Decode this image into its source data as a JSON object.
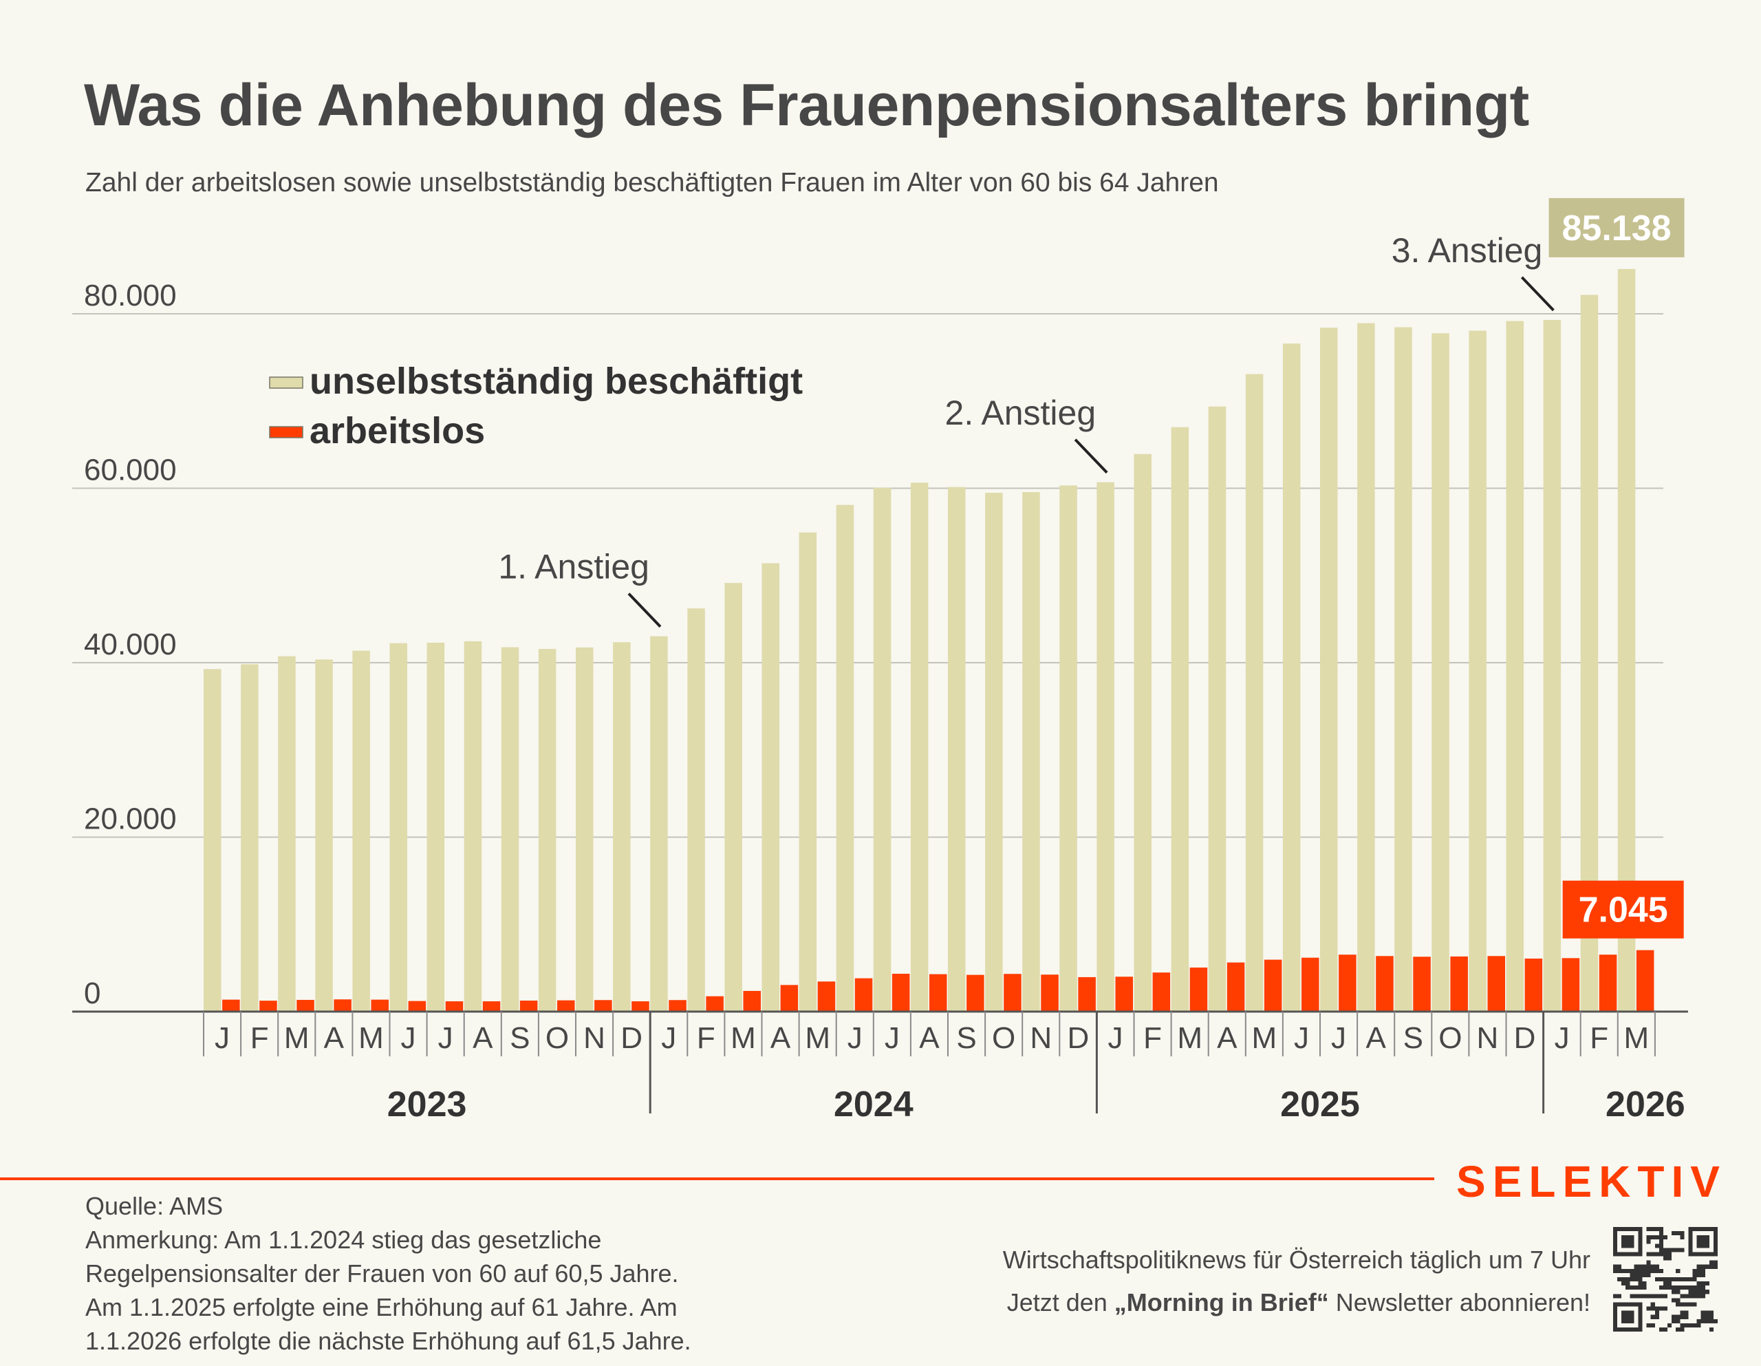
{
  "header": {
    "title": "Was die Anhebung des Frauenpensionsalters bringt",
    "subtitle": "Zahl der arbeitslosen sowie unselbstständig beschäftigten Frauen im Alter von 60 bis 64 Jahren"
  },
  "colors": {
    "employed": "#dfdbab",
    "unemployed": "#ff3d00",
    "employed_label_bg": "#c5c090",
    "brand": "#ff3d00",
    "background": "#f8f7f0",
    "text": "#474747"
  },
  "chart_data": {
    "type": "bar",
    "title": "Was die Anhebung des Frauenpensionsalters bringt",
    "subtitle": "Zahl der arbeitslosen sowie unselbstständig beschäftigten Frauen im Alter von 60 bis 64 Jahren",
    "xlabel": "",
    "ylabel": "",
    "ylim": [
      0,
      80000
    ],
    "yticks": [
      0,
      20000,
      40000,
      60000,
      80000
    ],
    "ytick_labels": [
      "0",
      "20.000",
      "40.000",
      "60.000",
      "80.000"
    ],
    "grid": true,
    "legend_position": "top-left",
    "categories": [
      "J",
      "F",
      "M",
      "A",
      "M",
      "J",
      "J",
      "A",
      "S",
      "O",
      "N",
      "D",
      "J",
      "F",
      "M",
      "A",
      "M",
      "J",
      "J",
      "A",
      "S",
      "O",
      "N",
      "D",
      "J",
      "F",
      "M",
      "A",
      "M",
      "J",
      "J",
      "A",
      "S",
      "O",
      "N",
      "D",
      "J",
      "F",
      "M"
    ],
    "years": [
      {
        "label": "2023",
        "months": 12
      },
      {
        "label": "2024",
        "months": 12
      },
      {
        "label": "2025",
        "months": 12
      },
      {
        "label": "2026",
        "months": 3
      }
    ],
    "series": [
      {
        "name": "unselbstständig beschäftigt",
        "color": "#dfdbab",
        "values": [
          39270,
          39820,
          40740,
          40370,
          41370,
          42240,
          42290,
          42450,
          41770,
          41580,
          41750,
          42350,
          43030,
          46220,
          49140,
          51400,
          54930,
          58090,
          60060,
          60640,
          60140,
          59480,
          59560,
          60320,
          60690,
          63920,
          67000,
          69370,
          73090,
          76590,
          78410,
          78930,
          78460,
          77770,
          78060,
          79170,
          79300,
          82170,
          85138
        ]
      },
      {
        "name": "arbeitslos",
        "color": "#ff3d00",
        "values": [
          1370,
          1250,
          1340,
          1400,
          1370,
          1210,
          1180,
          1180,
          1260,
          1290,
          1320,
          1180,
          1320,
          1760,
          2370,
          3050,
          3450,
          3820,
          4340,
          4290,
          4210,
          4320,
          4240,
          3950,
          4000,
          4480,
          5050,
          5630,
          5950,
          6180,
          6530,
          6370,
          6290,
          6320,
          6370,
          6080,
          6130,
          6530,
          7045
        ]
      }
    ],
    "annotations": [
      {
        "text": "1. Anstieg",
        "month_index": 12
      },
      {
        "text": "2. Anstieg",
        "month_index": 24
      },
      {
        "text": "3. Anstieg",
        "month_index": 36
      }
    ],
    "value_labels": [
      {
        "series": 0,
        "month_index": 38,
        "text": "85.138"
      },
      {
        "series": 1,
        "month_index": 38,
        "text": "7.045"
      }
    ]
  },
  "footer": {
    "brand": "SELEKTIV",
    "source": "Quelle: AMS",
    "note_lines": [
      "Anmerkung: Am 1.1.2024 stieg das gesetzliche",
      "Regelpensionsalter der Frauen von 60 auf 60,5 Jahre.",
      "Am 1.1.2025 erfolgte eine Erhöhung auf 61 Jahre. Am",
      "1.1.2026 erfolgte die nächste Erhöhung auf 61,5 Jahre."
    ],
    "promo_line1": "Wirtschaftspolitiknews für Österreich täglich um 7 Uhr",
    "promo_line2_pre": "Jetzt den ",
    "promo_line2_bold": "„Morning in Brief“",
    "promo_line2_post": " Newsletter abonnieren!",
    "qr_icon": "qr-code-icon"
  }
}
